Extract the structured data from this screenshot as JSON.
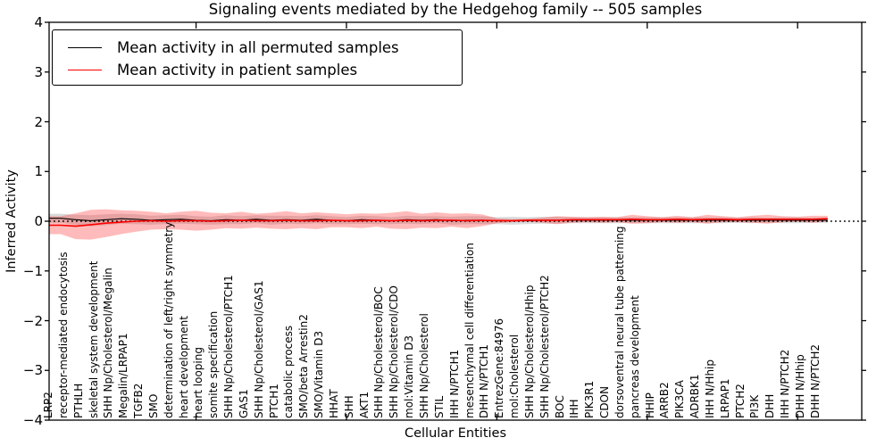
{
  "chart_data": {
    "type": "line",
    "title": "Signaling events mediated by the Hedgehog family -- 505 samples",
    "xlabel": "Cellular Entities",
    "ylabel": "Inferred Activity",
    "ylim": [
      -4,
      4
    ],
    "ytick_labels": [
      "4",
      "3",
      "2",
      "1",
      "0",
      "−1",
      "−2",
      "−3",
      "−4"
    ],
    "ytick_values": [
      4,
      3,
      2,
      1,
      0,
      -1,
      -2,
      -3,
      -4
    ],
    "grid": false,
    "legend_position": "upper left",
    "zero_reference_line": {
      "value": 0,
      "style": "dotted",
      "color": "#000000"
    },
    "colors": {
      "permuted_line": "#000000",
      "patient_line": "#ff0000",
      "permuted_band": "rgba(125,125,125,0.28)",
      "patient_band": "rgba(255,30,30,0.30)"
    },
    "categories": [
      "LRP2",
      "receptor-mediated endocytosis",
      "PTHLH",
      "skeletal system development",
      "SHH Np/Cholesterol/Megalin",
      "Megalin/LRPAP1",
      "TGFB2",
      "SMO",
      "determination of left/right symmetry",
      "heart development",
      "heart looping",
      "somite specification",
      "SHH Np/Cholesterol/PTCH1",
      "GAS1",
      "SHH Np/Cholesterol/GAS1",
      "PTCH1",
      "catabolic process",
      "SMO/beta Arrestin2",
      "SMO/Vitamin D3",
      "HHAT",
      "SHH",
      "AKT1",
      "SHH Np/Cholesterol/BOC",
      "SHH Np/Cholesterol/CDO",
      "mol:Vitamin D3",
      "SHH Np/Cholesterol",
      "STIL",
      "IHH N/PTCH1",
      "mesenchymal cell differentiation",
      "DHH N/PTCH1",
      "EntrezGene:84976",
      "mol:Cholesterol",
      "SHH Np/Cholesterol/Hhip",
      "SHH Np/Cholesterol/PTCH2",
      "BOC",
      "IHH",
      "PIK3R1",
      "CDON",
      "dorsoventral neural tube patterning",
      "pancreas development",
      "HHIP",
      "ARRB2",
      "PIK3CA",
      "ADRBK1",
      "IHH N/Hhip",
      "LRPAP1",
      "PTCH2",
      "PI3K",
      "DHH",
      "IHH N/PTCH2",
      "DHH N/Hhip",
      "DHH N/PTCH2"
    ],
    "series": [
      {
        "name": "Mean activity in all permuted samples",
        "color": "#000000",
        "values": [
          0.06,
          0.03,
          0.01,
          0.03,
          0.05,
          0.04,
          0.02,
          0.03,
          0.04,
          0.02,
          0.01,
          0.03,
          0.02,
          0.04,
          0.02,
          0.03,
          0.02,
          0.04,
          0.02,
          0.01,
          0.03,
          0.02,
          0.01,
          0.03,
          0.02,
          0.03,
          0.01,
          0.02,
          0.02,
          0.01,
          0.01,
          0.01,
          0.02,
          0.02,
          0.02,
          0.02,
          0.02,
          0.02,
          0.02,
          0.02,
          0.02,
          0.02,
          0.02,
          0.02,
          0.02,
          0.02,
          0.02,
          0.02,
          0.02,
          0.02,
          0.02,
          0.02
        ],
        "band_halfwidth": [
          0.09,
          0.1,
          0.11,
          0.11,
          0.1,
          0.1,
          0.09,
          0.09,
          0.09,
          0.08,
          0.08,
          0.09,
          0.08,
          0.08,
          0.09,
          0.08,
          0.08,
          0.08,
          0.08,
          0.07,
          0.08,
          0.08,
          0.07,
          0.08,
          0.08,
          0.07,
          0.08,
          0.08,
          0.08,
          0.07,
          0.08,
          0.07,
          0.07,
          0.07,
          0.06,
          0.06,
          0.06,
          0.06,
          0.06,
          0.06,
          0.06,
          0.06,
          0.06,
          0.06,
          0.06,
          0.05,
          0.06,
          0.05,
          0.06,
          0.06,
          0.05,
          0.05
        ]
      },
      {
        "name": "Mean activity in patient samples",
        "color": "#ff0000",
        "values": [
          -0.08,
          -0.1,
          -0.07,
          -0.04,
          -0.02,
          0.0,
          0.01,
          0.0,
          0.01,
          0.01,
          0.0,
          0.01,
          0.02,
          0.01,
          0.01,
          0.02,
          0.01,
          0.01,
          0.02,
          0.01,
          0.01,
          0.02,
          0.01,
          0.02,
          0.01,
          0.02,
          0.02,
          0.01,
          0.02,
          0.01,
          0.01,
          0.02,
          0.02,
          0.02,
          0.03,
          0.03,
          0.03,
          0.03,
          0.04,
          0.03,
          0.03,
          0.04,
          0.03,
          0.04,
          0.04,
          0.03,
          0.04,
          0.04,
          0.04,
          0.04,
          0.04,
          0.05
        ],
        "band_halfwidth": [
          0.18,
          0.26,
          0.3,
          0.28,
          0.24,
          0.21,
          0.18,
          0.16,
          0.18,
          0.2,
          0.17,
          0.15,
          0.17,
          0.14,
          0.16,
          0.18,
          0.15,
          0.17,
          0.14,
          0.13,
          0.15,
          0.13,
          0.16,
          0.18,
          0.14,
          0.16,
          0.13,
          0.15,
          0.12,
          0.05,
          0.03,
          0.03,
          0.05,
          0.08,
          0.06,
          0.05,
          0.06,
          0.05,
          0.09,
          0.07,
          0.05,
          0.07,
          0.05,
          0.09,
          0.06,
          0.05,
          0.07,
          0.09,
          0.06,
          0.05,
          0.07,
          0.06
        ]
      }
    ]
  }
}
